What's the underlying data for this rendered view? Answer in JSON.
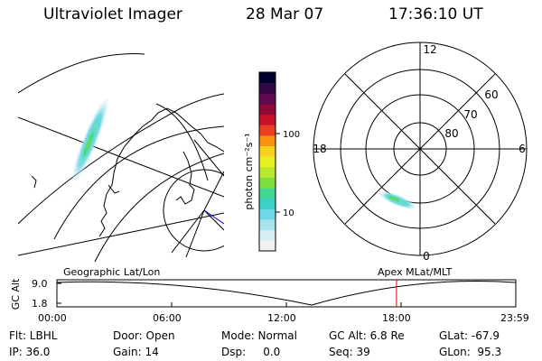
{
  "header": {
    "title": "Ultraviolet Imager",
    "date": "28 Mar 07",
    "time": "17:36:10 UT"
  },
  "colorbar": {
    "label": "photon cm⁻²s⁻¹",
    "tick_labels": [
      "100",
      "10"
    ],
    "colors": [
      "#f2f2f2",
      "#d8eef2",
      "#a8e4ee",
      "#6fd8e8",
      "#3dd0c8",
      "#40d890",
      "#7ee040",
      "#b8e830",
      "#e8f020",
      "#f8d020",
      "#f89010",
      "#e84020",
      "#c81028",
      "#900838",
      "#600850",
      "#300848",
      "#000030"
    ]
  },
  "polar": {
    "hour_labels": [
      "12",
      "18",
      "6",
      "0"
    ],
    "lat_labels": [
      "60",
      "70",
      "80"
    ]
  },
  "panel_labels": {
    "geo": "Geographic Lat/Lon",
    "apex": "Apex MLat/MLT"
  },
  "altitude_plot": {
    "axis_label": "GC Alt",
    "y_ticks": [
      "9.0",
      "1.8"
    ],
    "x_ticks": [
      "00:00",
      "06:00",
      "12:00",
      "18:00",
      "23:59"
    ],
    "current_time_fraction": 0.74,
    "marker_color": "#e00000"
  },
  "status": {
    "flt": "Flt: LBHL",
    "door": "Door: Open",
    "mode": "Mode: Normal",
    "gc_alt": "GC Alt: 6.8 Re",
    "glat": "GLat: -67.9",
    "ip": "IP: 36.0",
    "gain": "Gain: 14",
    "dsp": "Dsp:     0.0",
    "seq": "Seq: 39",
    "glon": "GLon:  95.3"
  }
}
